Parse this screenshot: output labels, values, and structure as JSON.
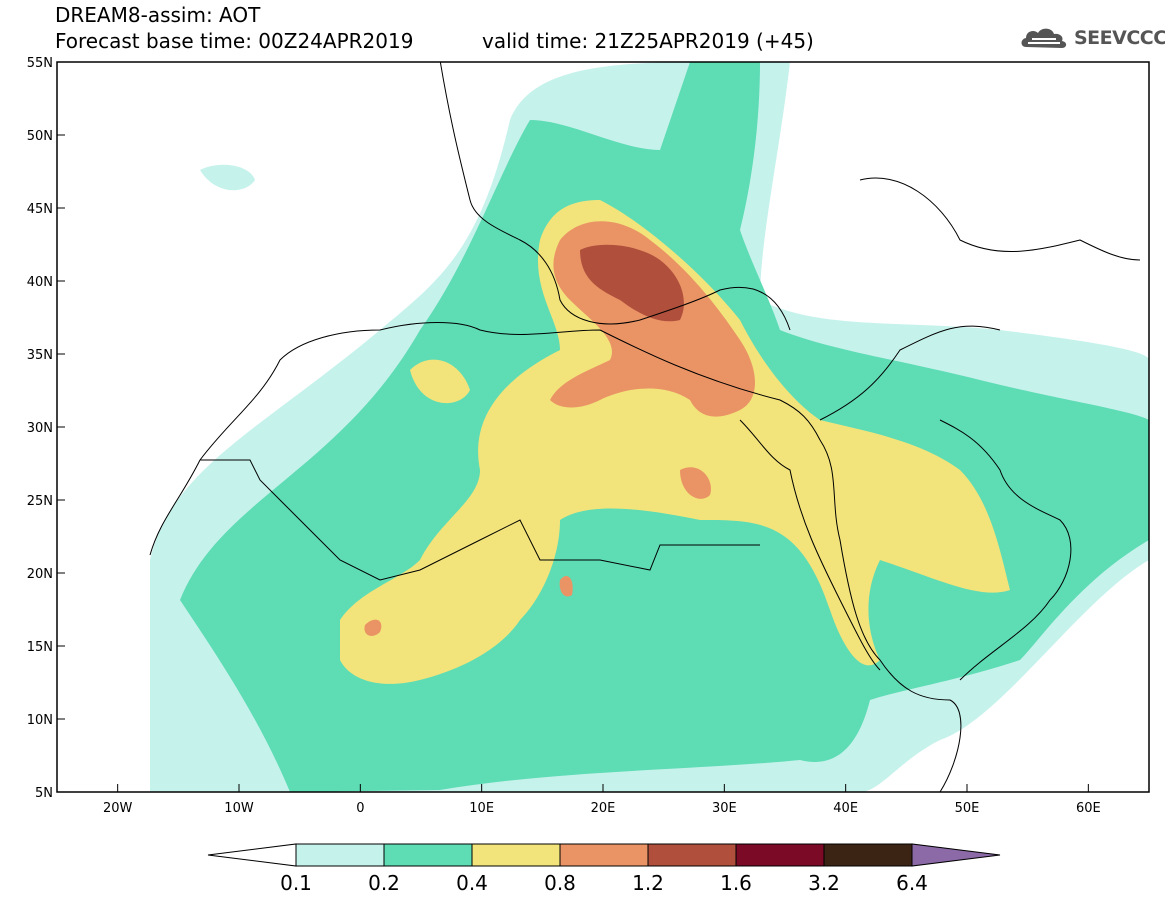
{
  "header": {
    "title": "DREAM8-assim: AOT",
    "base_time": "Forecast base time: 00Z24APR2019",
    "valid_time": "valid time: 21Z25APR2019 (+45)",
    "logo_text": "SEEVCCC",
    "logo_icon": "cloud-logo-icon"
  },
  "map": {
    "lon_range": [
      -25,
      65
    ],
    "lat_range": [
      5,
      55
    ],
    "lat_ticks": [
      "5N",
      "10N",
      "15N",
      "20N",
      "25N",
      "30N",
      "35N",
      "40N",
      "45N",
      "50N",
      "55N"
    ],
    "lon_ticks": [
      "20W",
      "10W",
      "0",
      "10E",
      "20E",
      "30E",
      "40E",
      "50E",
      "60E"
    ]
  },
  "colorbar": {
    "levels": [
      "0.1",
      "0.2",
      "0.4",
      "0.8",
      "1.2",
      "1.6",
      "3.2",
      "6.4"
    ],
    "colors": [
      "#ffffff",
      "#c6f2ec",
      "#5edcb4",
      "#f2e47a",
      "#ea9466",
      "#b0503c",
      "#7a0a26",
      "#3b2414",
      "#8c6aa8"
    ]
  }
}
